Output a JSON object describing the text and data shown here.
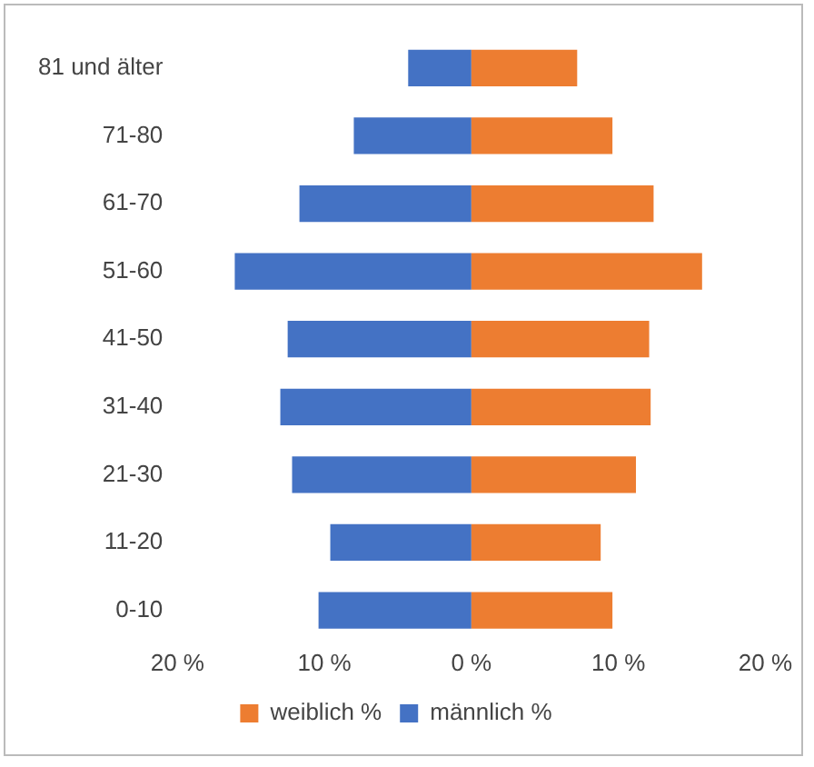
{
  "chart_data": {
    "type": "bar",
    "orientation": "horizontal",
    "stacked": true,
    "categories": [
      "81 und älter",
      "71-80",
      "61-70",
      "51-60",
      "41-50",
      "31-40",
      "21-30",
      "11-20",
      "0-10"
    ],
    "series": [
      {
        "name": "weiblich %",
        "color": "#ed7d31",
        "values": [
          7.2,
          9.6,
          12.4,
          15.7,
          12.1,
          12.2,
          11.2,
          8.8,
          9.6
        ]
      },
      {
        "name": "männlich %",
        "color": "#4472c4",
        "values": [
          -4.3,
          -8.0,
          -11.7,
          -16.1,
          -12.5,
          -13.0,
          -12.2,
          -9.6,
          -10.4
        ]
      }
    ],
    "xlim": [
      -20,
      20
    ],
    "xticks": [
      {
        "value": -20,
        "label": "20 %"
      },
      {
        "value": -10,
        "label": "10 %"
      },
      {
        "value": 0,
        "label": "0 %"
      },
      {
        "value": 10,
        "label": "10 %"
      },
      {
        "value": 20,
        "label": "20 %"
      }
    ],
    "legend": "bottom",
    "grid": false
  }
}
